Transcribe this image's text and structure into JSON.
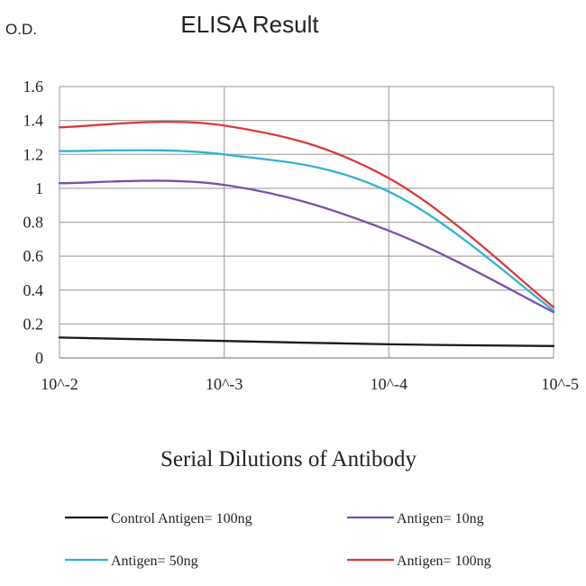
{
  "chart_data": {
    "type": "line",
    "title": "ELISA Result",
    "ylabel": "O.D.",
    "xlabel": "Serial Dilutions of Antibody",
    "x": [
      "10^-2",
      "10^-3",
      "10^-4",
      "10^-5"
    ],
    "y_ticks": [
      "0",
      "0.2",
      "0.4",
      "0.6",
      "0.8",
      "1",
      "1.2",
      "1.4",
      "1.6"
    ],
    "ylim": [
      0,
      1.6
    ],
    "grid": true,
    "legend_position": "bottom",
    "series": [
      {
        "name": "Control Antigen= 100ng",
        "color": "#1a1a1a",
        "values": [
          0.12,
          0.1,
          0.08,
          0.07
        ]
      },
      {
        "name": "Antigen= 10ng",
        "color": "#7b4fa8",
        "values": [
          1.03,
          1.02,
          0.75,
          0.27
        ]
      },
      {
        "name": "Antigen= 50ng",
        "color": "#2fb3d6",
        "values": [
          1.22,
          1.2,
          0.98,
          0.28
        ]
      },
      {
        "name": "Antigen= 100ng",
        "color": "#d93a3a",
        "values": [
          1.36,
          1.37,
          1.06,
          0.3
        ]
      }
    ]
  }
}
